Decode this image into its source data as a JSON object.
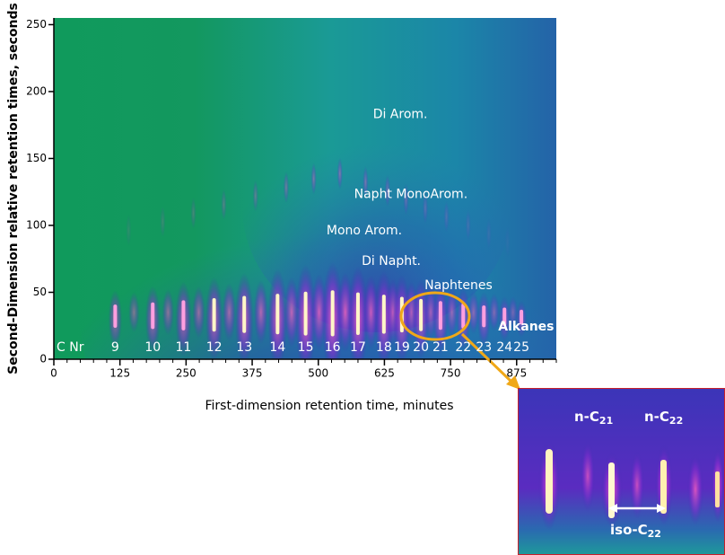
{
  "chart_data": {
    "type": "heatmap",
    "x_label": "First-dimension retention time, minutes",
    "y_label": "Second-Dimension relative retention times, seconds",
    "xlim": [
      0,
      950
    ],
    "ylim": [
      0,
      255
    ],
    "xticks": [
      0,
      125,
      250,
      375,
      500,
      625,
      750,
      875
    ],
    "yticks": [
      0,
      50,
      100,
      150,
      200,
      250
    ],
    "annotations": [
      {
        "text": "Di Arom.",
        "x": 655,
        "y": 183
      },
      {
        "text": "Napht MonoArom.",
        "x": 675,
        "y": 123
      },
      {
        "text": "Mono Arom.",
        "x": 587,
        "y": 96
      },
      {
        "text": "Di Napht.",
        "x": 638,
        "y": 73
      },
      {
        "text": "Naphtenes",
        "x": 765,
        "y": 55
      },
      {
        "text": "Alkanes",
        "x": 893,
        "y": 24
      }
    ],
    "carbon_number_label": "C Nr",
    "carbon_numbers": {
      "labels": [
        9,
        10,
        11,
        12,
        13,
        14,
        15,
        16,
        17,
        18,
        19,
        20,
        21,
        22,
        23,
        24,
        25
      ],
      "x": [
        116,
        187,
        245,
        303,
        360,
        423,
        476,
        527,
        575,
        624,
        658,
        694,
        731,
        774,
        813,
        852,
        884
      ]
    },
    "inset": {
      "labels": [
        {
          "text": "n-C",
          "sub": 21
        },
        {
          "text": "n-C",
          "sub": 22
        },
        {
          "text": "iso-C",
          "sub": 22
        }
      ]
    }
  }
}
